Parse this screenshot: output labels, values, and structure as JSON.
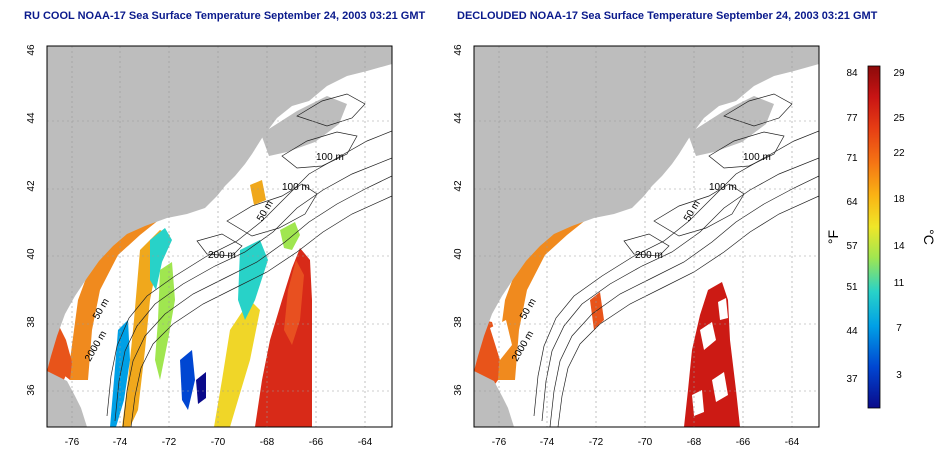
{
  "titles": {
    "left": "RU COOL NOAA-17 Sea Surface Temperature September 24, 2003 03:21 GMT",
    "right": "DECLOUDED NOAA-17 Sea Surface Temperature September 24, 2003 03:21 GMT"
  },
  "axes": {
    "lon_ticks": [
      "-76",
      "-74",
      "-72",
      "-70",
      "-68",
      "-66",
      "-64"
    ],
    "lat_ticks": [
      "46",
      "44",
      "42",
      "40",
      "38",
      "36"
    ]
  },
  "contour_labels": {
    "left": [
      "100 m",
      "100 m",
      "50 m",
      "200 m",
      "50 m",
      "2000 m"
    ],
    "right": [
      "100 m",
      "100 m",
      "50 m",
      "200 m",
      "50 m",
      "2000 m"
    ]
  },
  "colorbar": {
    "fahrenheit_ticks": [
      "84",
      "77",
      "71",
      "64",
      "57",
      "51",
      "44",
      "37"
    ],
    "celsius_ticks": [
      "29",
      "25",
      "22",
      "18",
      "14",
      "11",
      "7",
      "3"
    ],
    "fahrenheit_unit": "°F",
    "celsius_unit": "°C",
    "colors": [
      "#0a0a8a",
      "#0046d2",
      "#00a0e6",
      "#28d2c8",
      "#a0e650",
      "#f0e628",
      "#fab414",
      "#f57314",
      "#e63c14",
      "#c81414",
      "#8c0a0a"
    ]
  },
  "colors": {
    "land": "#bdbdbd",
    "ocean_warm": "#e0301a",
    "coastal": "#f08a1e",
    "cold": "#1030c8"
  }
}
